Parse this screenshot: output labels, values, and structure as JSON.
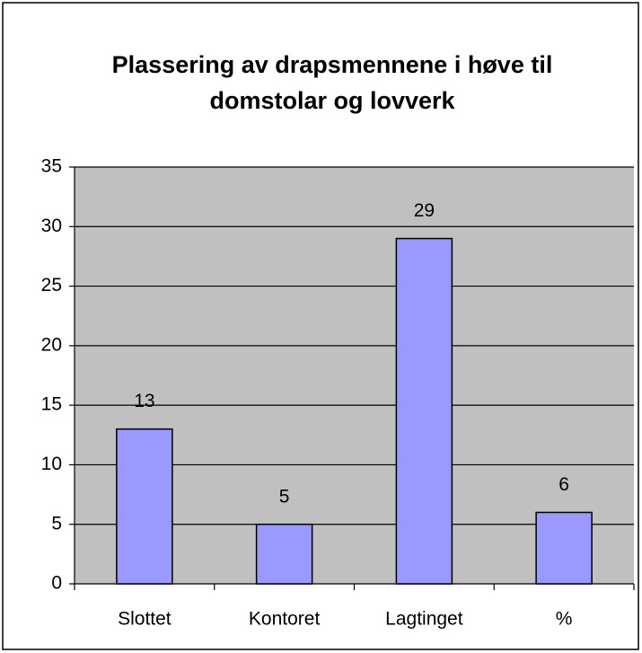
{
  "chart_data": {
    "type": "bar",
    "title": "Plassering av drapsmennene i høve til domstolar og lovverk",
    "categories": [
      "Slottet",
      "Kontoret",
      "Lagtinget",
      "%"
    ],
    "values": [
      13,
      5,
      29,
      6
    ],
    "color": "#9999ff",
    "ylim": [
      0,
      35
    ],
    "yticks": [
      0,
      5,
      10,
      15,
      20,
      25,
      30,
      35
    ],
    "grid": true
  }
}
